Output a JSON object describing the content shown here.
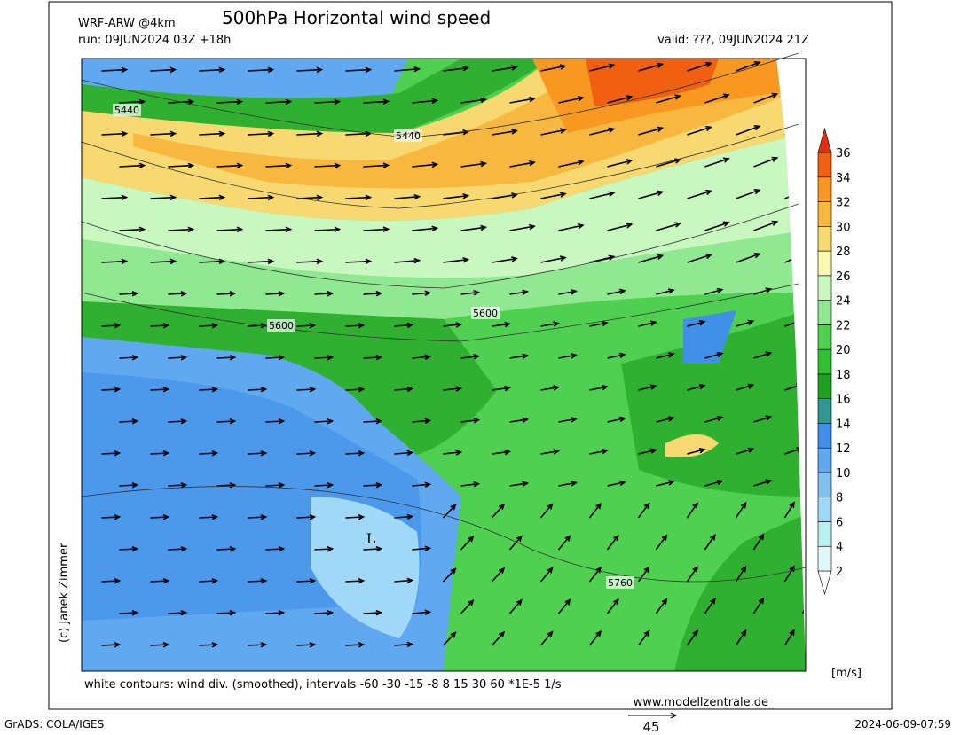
{
  "header": {
    "model": "WRF-ARW @4km",
    "title": "500hPa Horizontal wind speed",
    "run": "run: 09JUN2024 03Z +18h",
    "valid": "valid: ???, 09JUN2024 21Z"
  },
  "map": {
    "contour_labels": [
      "5440",
      "5440",
      "5600",
      "5600",
      "5760"
    ],
    "low_marker": "L"
  },
  "colorbar": {
    "labels": [
      "2",
      "4",
      "6",
      "8",
      "10",
      "12",
      "14",
      "16",
      "18",
      "20",
      "22",
      "24",
      "26",
      "28",
      "30",
      "32",
      "34",
      "36"
    ],
    "colors": [
      "#ffffff",
      "#e0f8f8",
      "#b8f0f0",
      "#a0d8f8",
      "#80c0f0",
      "#60a8f0",
      "#4090e8",
      "#309890",
      "#20a020",
      "#30c030",
      "#50d050",
      "#90e890",
      "#c8f8c0",
      "#f8f8b0",
      "#f8d870",
      "#f8b840",
      "#f89820",
      "#f06010",
      "#e03010"
    ],
    "unit": "[m/s]"
  },
  "footer": {
    "note": "white contours: wind div. (smoothed), intervals -60 -30 -15 -8 8 15 30 60 *1E-5 1/s",
    "site": "www.modellzentrale.de",
    "software": "GrADS: COLA/IGES",
    "arrow_scale": "45",
    "timestamp": "2024-06-09-07:59",
    "copyright": "(c) Janek Zimmer"
  }
}
